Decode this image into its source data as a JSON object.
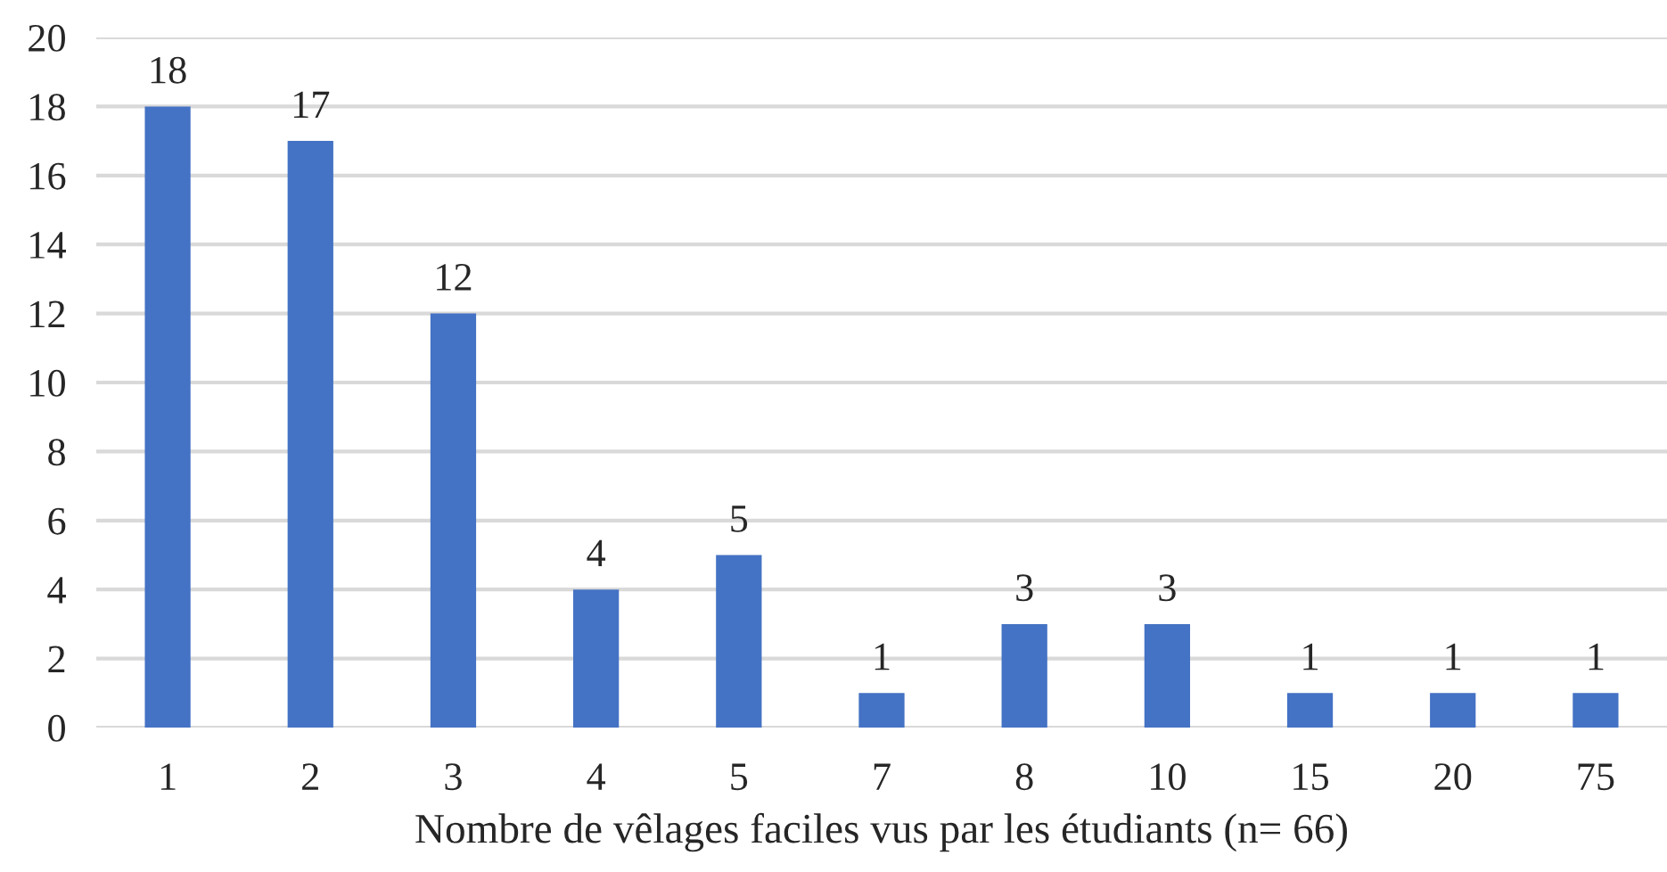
{
  "chart_data": {
    "type": "bar",
    "xlabel": "Nombre de vêlages faciles vus par les étudiants (n= 66)",
    "categories": [
      "1",
      "2",
      "3",
      "4",
      "5",
      "7",
      "8",
      "10",
      "15",
      "20",
      "75"
    ],
    "values": [
      18,
      17,
      12,
      4,
      5,
      1,
      3,
      3,
      1,
      1,
      1
    ],
    "color": "#4472c4",
    "ylim": [
      0,
      20
    ],
    "yticks": [
      0,
      2,
      4,
      6,
      8,
      10,
      12,
      14,
      16,
      18,
      20
    ],
    "grid": "y",
    "data_labels": true
  }
}
